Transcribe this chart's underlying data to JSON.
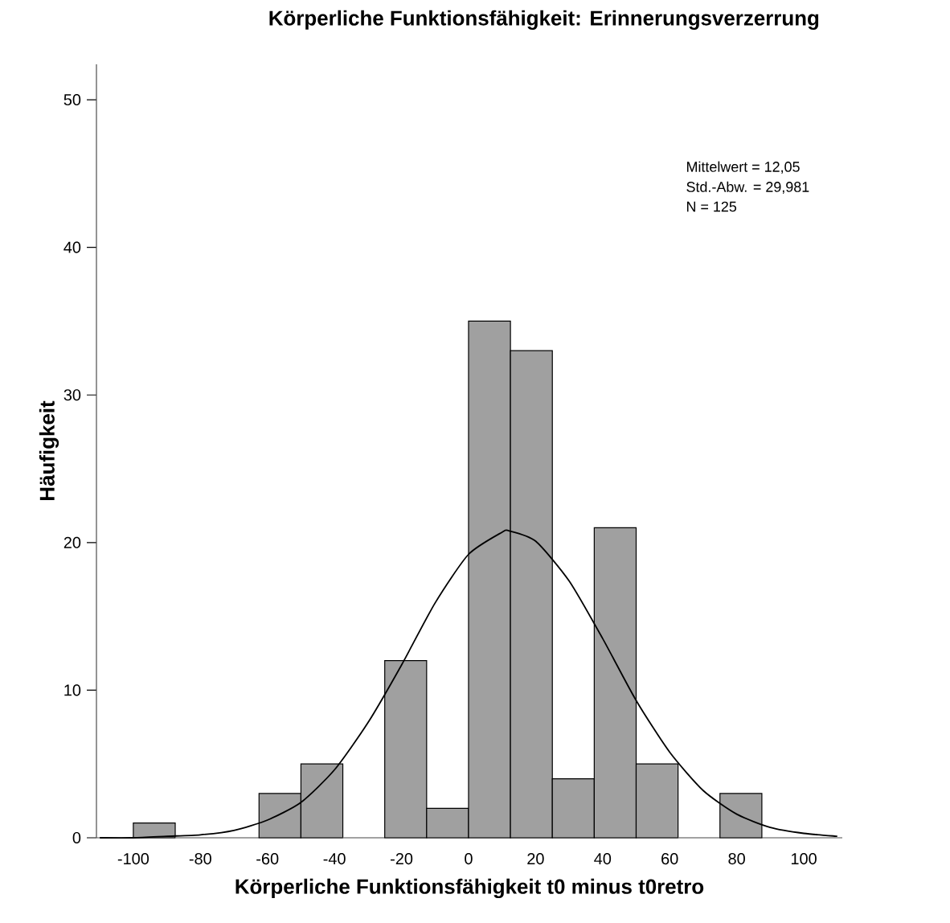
{
  "chart_data": {
    "type": "histogram",
    "title": "Körperliche Funktionsfähigkeit: Erinnerungsverzerrung",
    "xlabel": "Körperliche Funktionsfähigkeit t0 minus t0retro",
    "ylabel": "Häufigkeit",
    "annotations": [
      "Mittelwert = 12,05",
      "Std.-Abw. = 29,981",
      "N = 125"
    ],
    "bins": [
      -100,
      -87.5,
      -75,
      -62.5,
      -50,
      -37.5,
      -25,
      -12.5,
      0,
      12.5,
      25,
      37.5,
      50,
      62.5,
      75,
      87.5
    ],
    "values": [
      1,
      0,
      0,
      3,
      5,
      0,
      12,
      2,
      35,
      33,
      4,
      21,
      5,
      0,
      3
    ],
    "color": "#a0a0a0",
    "xlim": [
      -111,
      111.5
    ],
    "ylim": [
      0,
      52.4
    ],
    "xticks": [
      -100,
      -80,
      -60,
      -40,
      -20,
      0,
      20,
      40,
      60,
      80,
      100
    ],
    "yticks": [
      0,
      10,
      20,
      30,
      40,
      50
    ],
    "series": [
      {
        "type": "line",
        "color": "#000000",
        "x": [
          -110,
          -100,
          -90,
          -80,
          -70,
          -60,
          -50,
          -40,
          -30,
          -20,
          -10,
          0,
          10,
          12,
          20,
          30,
          40,
          50,
          60,
          70,
          80,
          90,
          100,
          110
        ],
        "values": [
          0.0,
          0.0,
          0.1,
          0.2,
          0.5,
          1.2,
          2.4,
          4.6,
          7.8,
          11.7,
          15.9,
          19.2,
          20.7,
          20.8,
          20.1,
          17.4,
          13.5,
          9.3,
          5.8,
          3.2,
          1.6,
          0.7,
          0.3,
          0.1
        ]
      }
    ]
  }
}
